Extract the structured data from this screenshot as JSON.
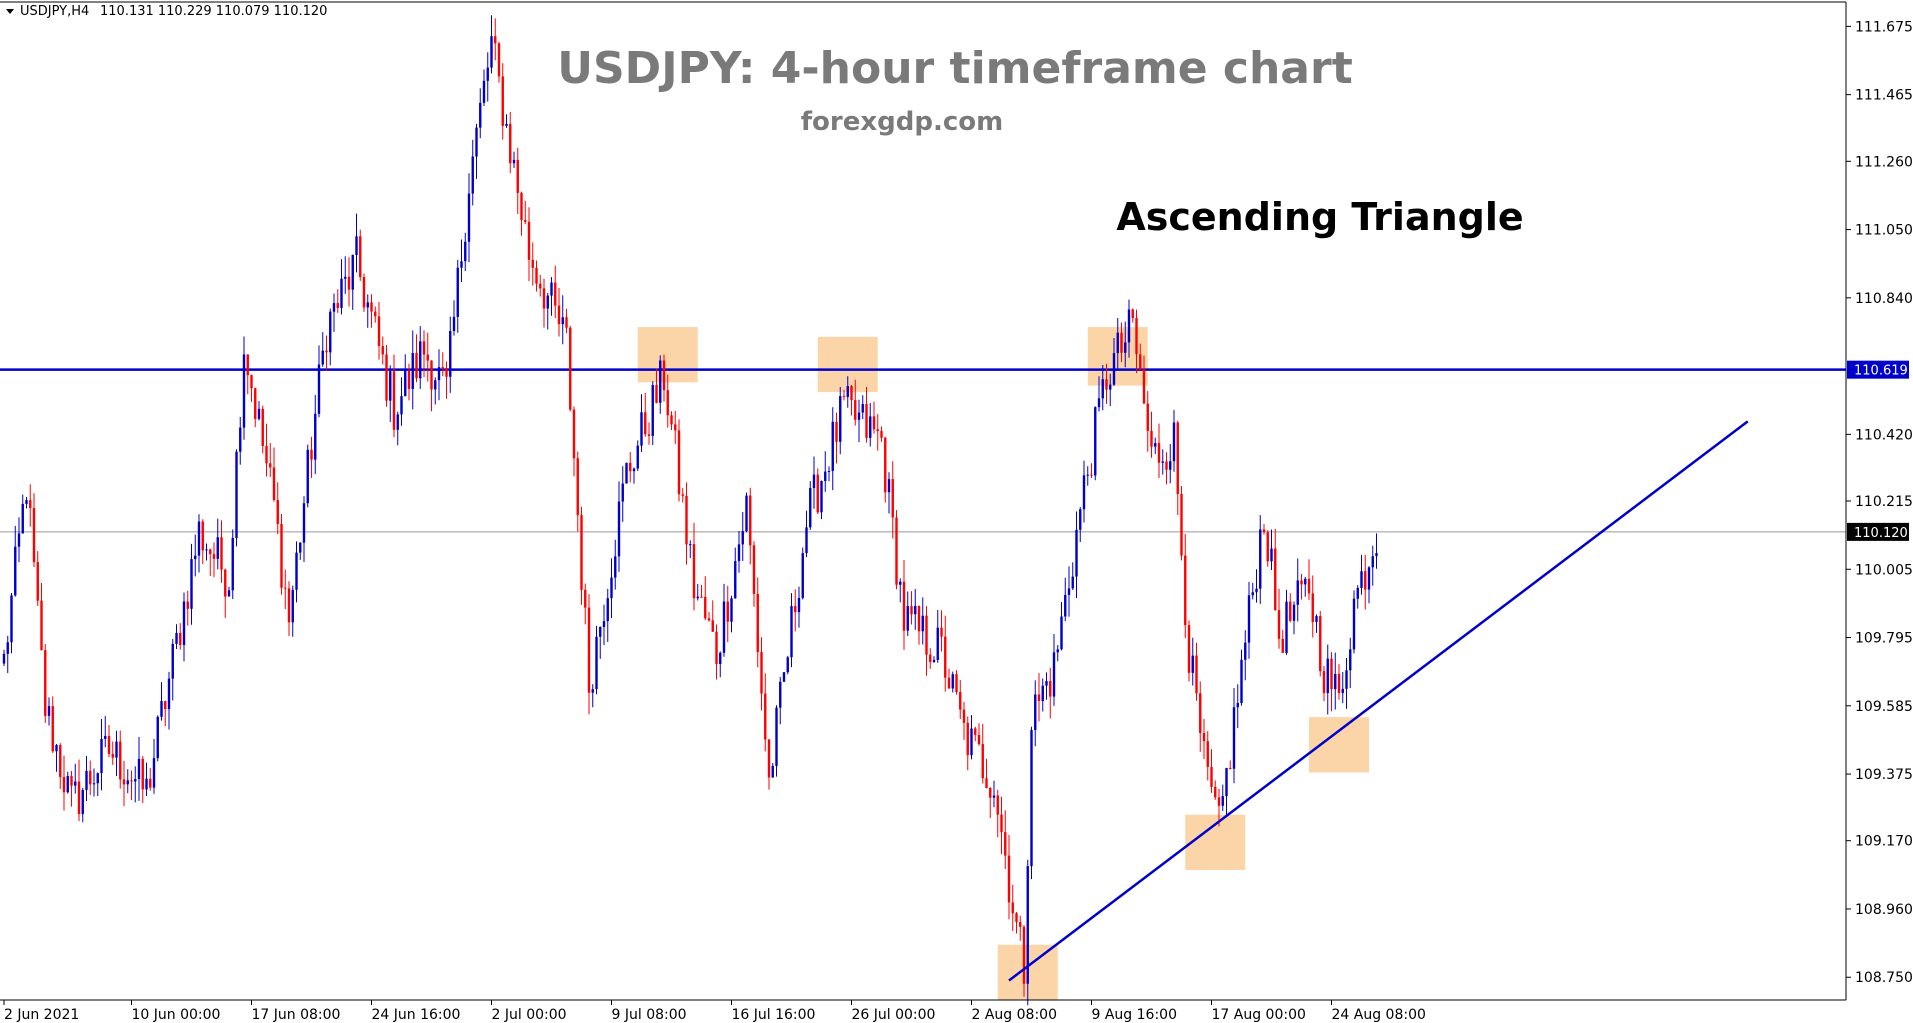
{
  "header": {
    "symbol_label": "USDJPY,H4",
    "ohlc": "110.131 110.229 110.079 110.120"
  },
  "colors": {
    "bull": "#0000cc",
    "bear": "#ff0000",
    "resistance": "#0000cc",
    "trendline": "#0000cc",
    "current_price_line": "#999999",
    "highlight": "#fbd5a8",
    "price_tag_bg": "#0000cc",
    "current_tag_bg": "#000000"
  },
  "chart_data": {
    "type": "candlestick",
    "title": "USDJPY: 4-hour timeframe chart",
    "subtitle": "forexgdp.com",
    "annotation": "Ascending Triangle",
    "ylim": [
      108.68,
      111.75
    ],
    "y_ticks": [
      "111.675",
      "111.465",
      "111.260",
      "111.050",
      "110.840",
      "110.420",
      "110.215",
      "110.005",
      "109.795",
      "109.585",
      "109.375",
      "109.170",
      "108.960",
      "108.750"
    ],
    "x_ticks": [
      {
        "label": "2 Jun 2021",
        "bar": 0
      },
      {
        "label": "10 Jun 00:00",
        "bar": 34
      },
      {
        "label": "17 Jun 08:00",
        "bar": 66
      },
      {
        "label": "24 Jun 16:00",
        "bar": 98
      },
      {
        "label": "2 Jul 00:00",
        "bar": 130
      },
      {
        "label": "9 Jul 08:00",
        "bar": 162
      },
      {
        "label": "16 Jul 16:00",
        "bar": 194
      },
      {
        "label": "26 Jul 00:00",
        "bar": 226
      },
      {
        "label": "2 Aug 08:00",
        "bar": 258
      },
      {
        "label": "9 Aug 16:00",
        "bar": 290
      },
      {
        "label": "17 Aug 00:00",
        "bar": 322
      },
      {
        "label": "24 Aug 08:00",
        "bar": 354
      }
    ],
    "resistance_level": 110.619,
    "resistance_label": "110.619",
    "current_price": 110.12,
    "current_price_label": "110.120",
    "trendline": {
      "from": {
        "bar": 268,
        "price": 108.74
      },
      "to": {
        "bar": 465,
        "price": 110.46
      }
    },
    "highlight_zones": [
      {
        "bar_from": 169,
        "bar_to": 185,
        "price_from": 110.58,
        "price_to": 110.75
      },
      {
        "bar_from": 217,
        "bar_to": 233,
        "price_from": 110.55,
        "price_to": 110.72
      },
      {
        "bar_from": 289,
        "bar_to": 305,
        "price_from": 110.57,
        "price_to": 110.75
      },
      {
        "bar_from": 315,
        "bar_to": 331,
        "price_from": 109.08,
        "price_to": 109.25
      },
      {
        "bar_from": 348,
        "bar_to": 364,
        "price_from": 109.38,
        "price_to": 109.55
      },
      {
        "bar_from": 265,
        "bar_to": 281,
        "price_from": 108.68,
        "price_to": 108.85
      }
    ],
    "anchors": [
      [
        0,
        109.72
      ],
      [
        6,
        110.27
      ],
      [
        11,
        109.58
      ],
      [
        18,
        109.28
      ],
      [
        28,
        109.45
      ],
      [
        38,
        109.32
      ],
      [
        52,
        110.12
      ],
      [
        60,
        109.98
      ],
      [
        64,
        110.7
      ],
      [
        72,
        110.2
      ],
      [
        76,
        109.85
      ],
      [
        86,
        110.75
      ],
      [
        94,
        110.95
      ],
      [
        104,
        110.5
      ],
      [
        112,
        110.68
      ],
      [
        118,
        110.55
      ],
      [
        124,
        111.2
      ],
      [
        130,
        111.62
      ],
      [
        140,
        110.98
      ],
      [
        150,
        110.7
      ],
      [
        156,
        109.65
      ],
      [
        166,
        110.3
      ],
      [
        176,
        110.6
      ],
      [
        184,
        109.95
      ],
      [
        190,
        109.75
      ],
      [
        198,
        110.2
      ],
      [
        204,
        109.35
      ],
      [
        214,
        110.15
      ],
      [
        224,
        110.5
      ],
      [
        234,
        110.4
      ],
      [
        240,
        109.85
      ],
      [
        250,
        109.75
      ],
      [
        256,
        109.5
      ],
      [
        264,
        109.35
      ],
      [
        270,
        108.9
      ],
      [
        272,
        108.78
      ],
      [
        274,
        109.55
      ],
      [
        280,
        109.7
      ],
      [
        288,
        110.25
      ],
      [
        294,
        110.6
      ],
      [
        301,
        110.75
      ],
      [
        306,
        110.35
      ],
      [
        312,
        110.4
      ],
      [
        316,
        109.75
      ],
      [
        320,
        109.4
      ],
      [
        324,
        109.2
      ],
      [
        330,
        109.7
      ],
      [
        336,
        110.18
      ],
      [
        340,
        109.8
      ],
      [
        348,
        109.95
      ],
      [
        352,
        109.7
      ],
      [
        356,
        109.6
      ],
      [
        360,
        109.9
      ],
      [
        366,
        110.12
      ]
    ]
  }
}
